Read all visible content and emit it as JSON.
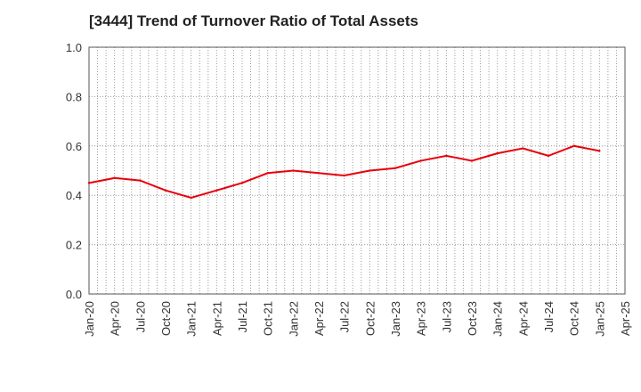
{
  "chart_data": {
    "type": "line",
    "title": "[3444]  Trend of Turnover Ratio of Total Assets",
    "xlabel": "",
    "ylabel": "",
    "ylim": [
      0.0,
      1.0
    ],
    "yticks": [
      "0.0",
      "0.2",
      "0.4",
      "0.6",
      "0.8",
      "1.0"
    ],
    "xticks": [
      "Jan-20",
      "Apr-20",
      "Jul-20",
      "Oct-20",
      "Jan-21",
      "Apr-21",
      "Jul-21",
      "Oct-21",
      "Jan-22",
      "Apr-22",
      "Jul-22",
      "Oct-22",
      "Jan-23",
      "Apr-23",
      "Jul-23",
      "Oct-23",
      "Jan-24",
      "Apr-24",
      "Jul-24",
      "Oct-24",
      "Jan-25",
      "Apr-25"
    ],
    "grid": true,
    "series": [
      {
        "color": "#e8000b",
        "x": [
          "Jan-20",
          "Apr-20",
          "Jul-20",
          "Oct-20",
          "Jan-21",
          "Apr-21",
          "Jul-21",
          "Oct-21",
          "Jan-22",
          "Apr-22",
          "Jul-22",
          "Oct-22",
          "Jan-23",
          "Apr-23",
          "Jul-23",
          "Oct-23",
          "Jan-24",
          "Apr-24",
          "Jul-24",
          "Oct-24",
          "Jan-25"
        ],
        "values": [
          0.45,
          0.47,
          0.46,
          0.42,
          0.39,
          0.42,
          0.45,
          0.49,
          0.5,
          0.49,
          0.48,
          0.5,
          0.51,
          0.54,
          0.56,
          0.54,
          0.57,
          0.59,
          0.56,
          0.6,
          0.58
        ]
      }
    ]
  }
}
